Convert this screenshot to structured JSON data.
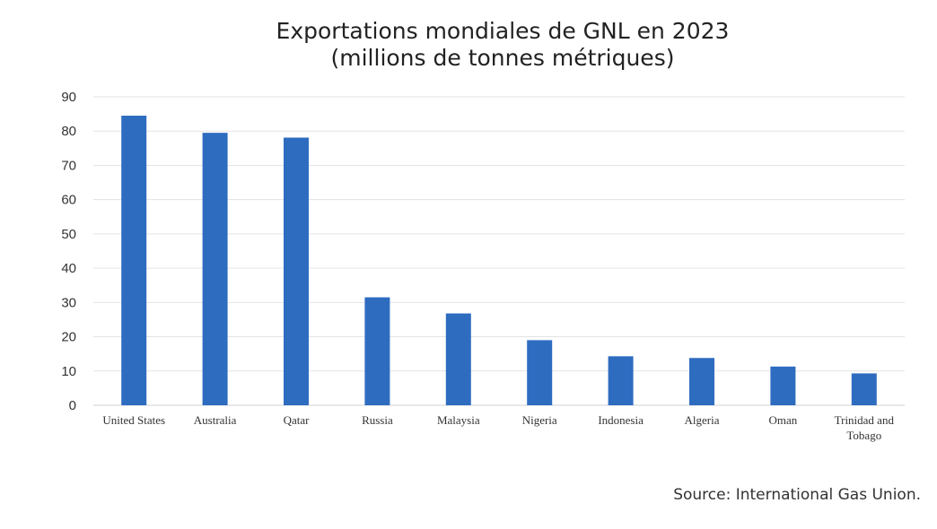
{
  "chart_data": {
    "type": "bar",
    "title": "Exportations mondiales de GNL en 2023",
    "subtitle": "(millions de tonnes métriques)",
    "categories": [
      "United States",
      "Australia",
      "Qatar",
      "Russia",
      "Malaysia",
      "Nigeria",
      "Indonesia",
      "Algeria",
      "Oman",
      "Trinidad and Tobago"
    ],
    "values": [
      84.5,
      79.5,
      78.1,
      31.5,
      26.8,
      19.0,
      14.3,
      13.8,
      11.3,
      9.3
    ],
    "ylim": [
      0,
      90
    ],
    "yticks": [
      0,
      10,
      20,
      30,
      40,
      50,
      60,
      70,
      80,
      90
    ],
    "grid": true,
    "bar_color": "#2e6cc0"
  },
  "source": "Source: International Gas Union."
}
